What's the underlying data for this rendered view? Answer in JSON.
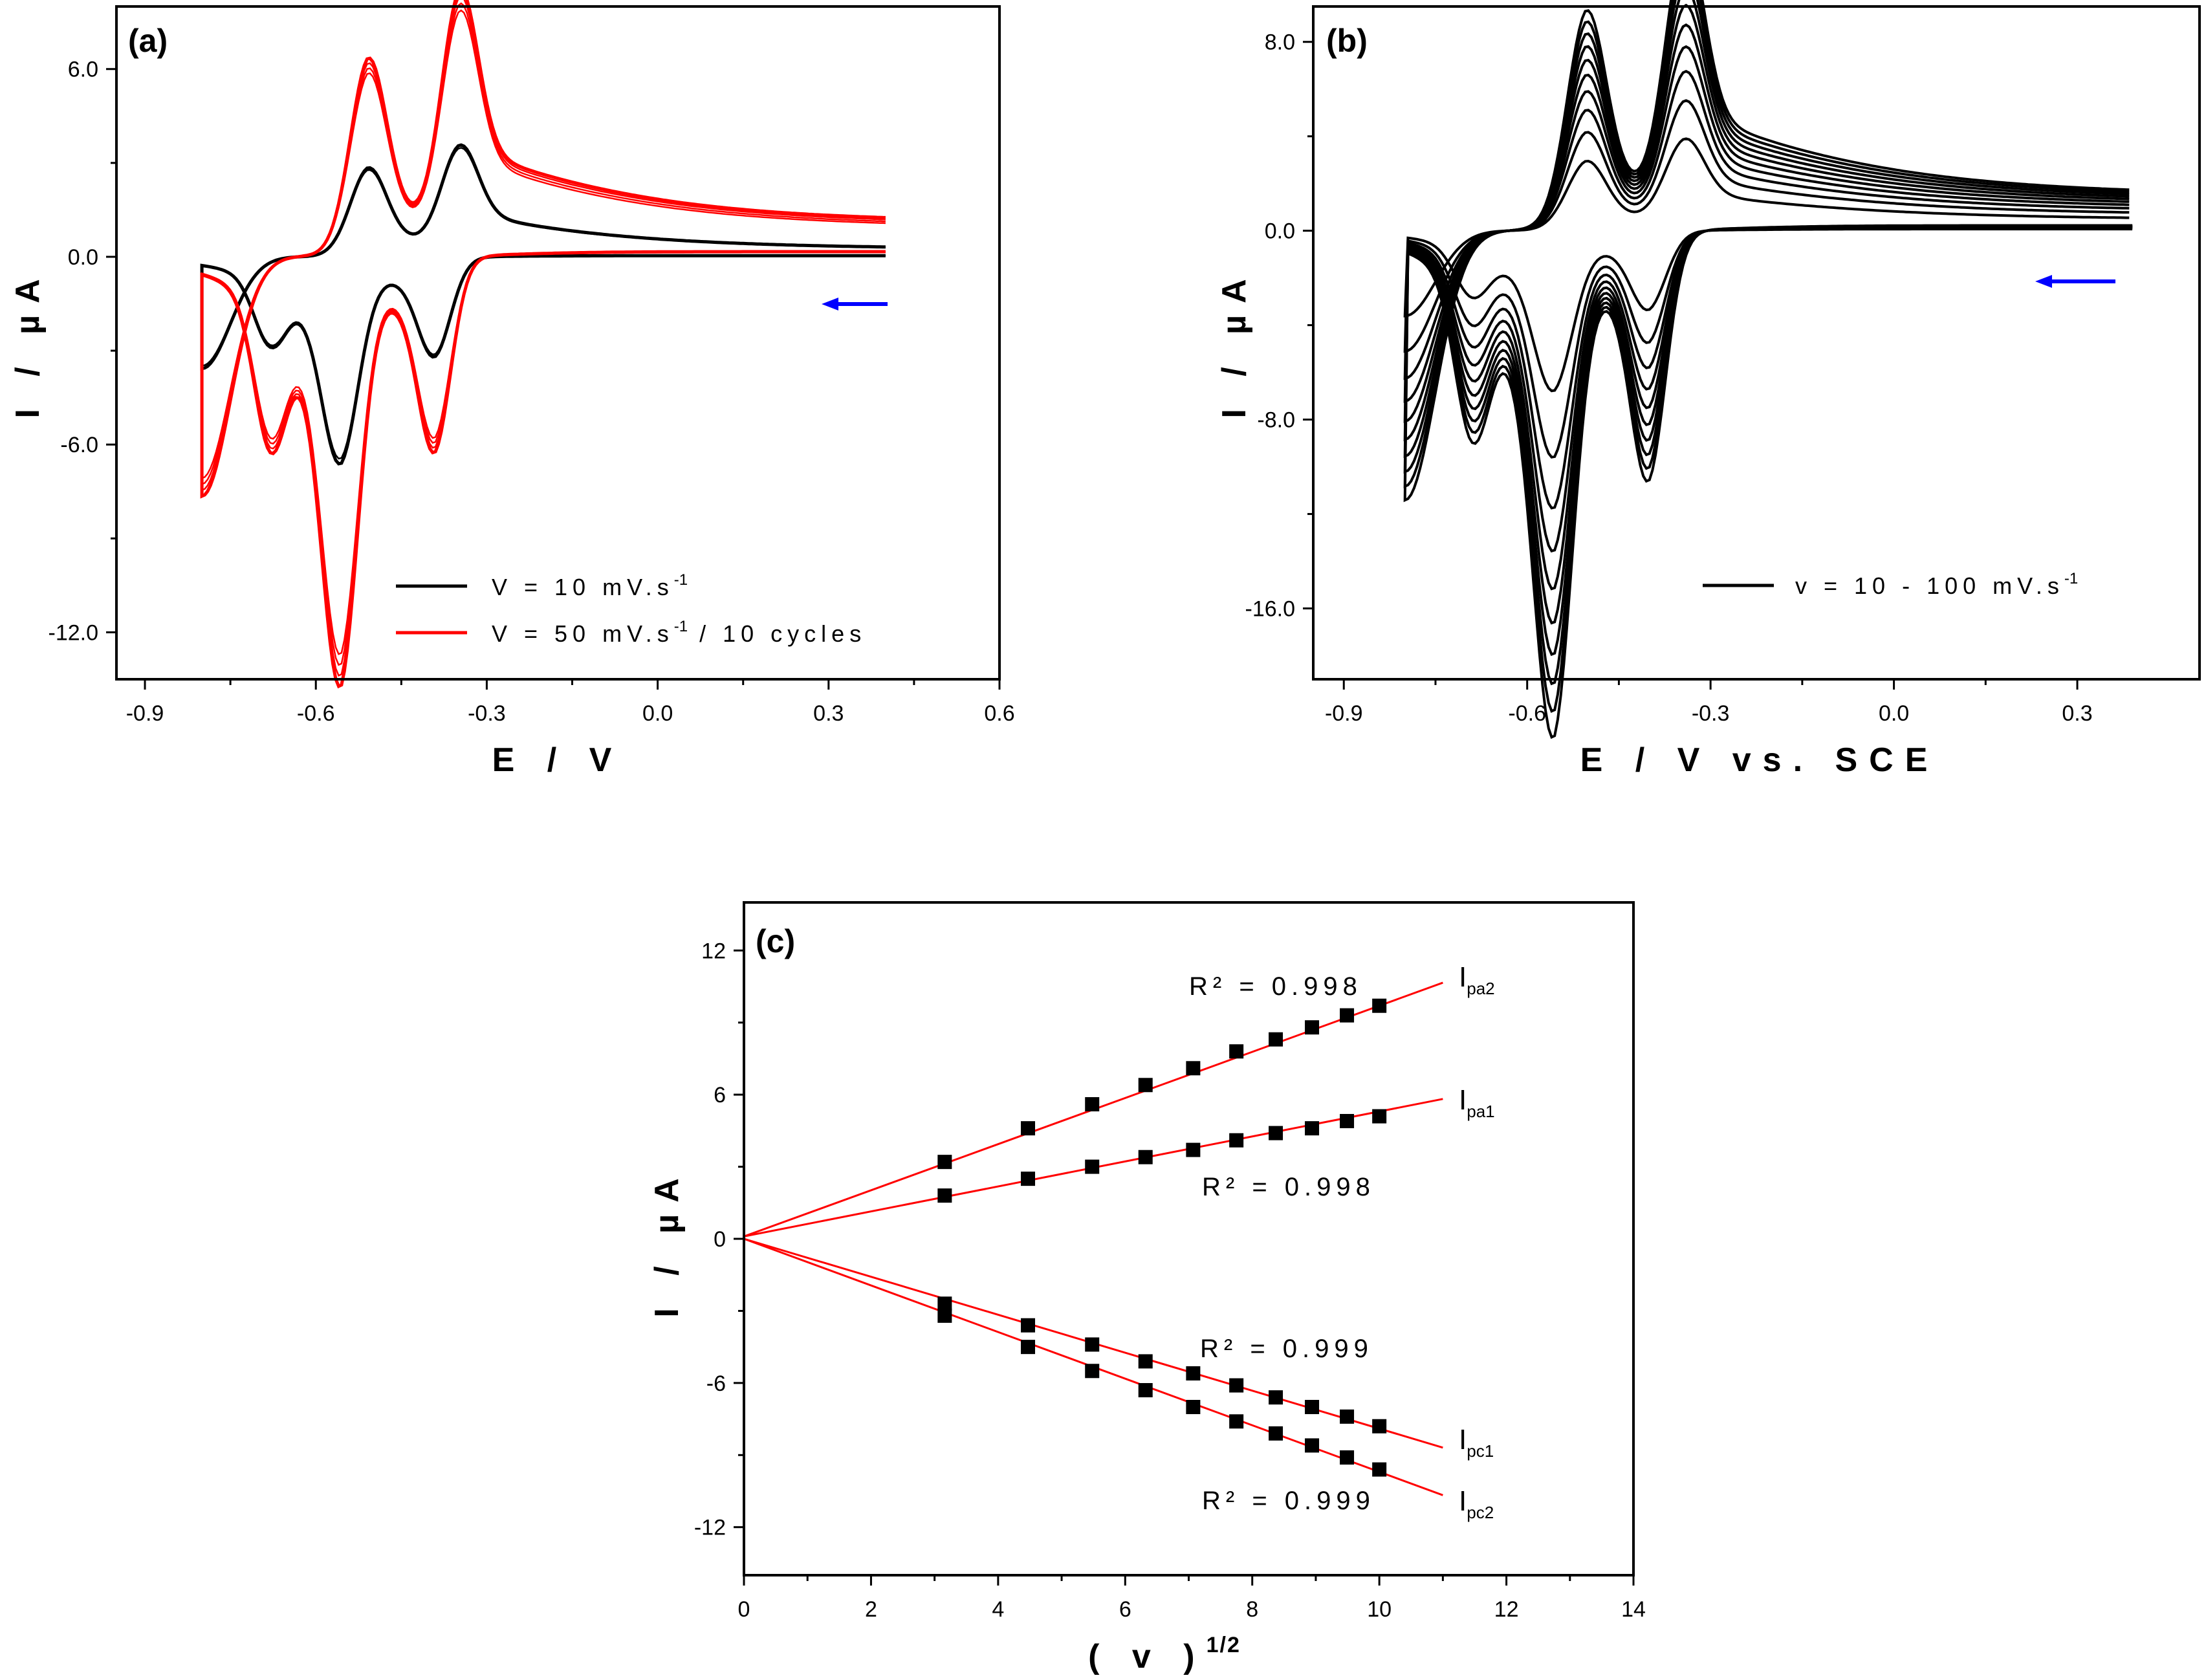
{
  "chart_data": [
    {
      "id": "a",
      "type": "line",
      "panel_label": "(a)",
      "xlabel": "E / V",
      "ylabel": "I / µA",
      "xlim": [
        -0.95,
        0.6
      ],
      "ylim": [
        -13.5,
        8.0
      ],
      "xticks": [
        -0.9,
        -0.6,
        -0.3,
        0.0,
        0.3,
        0.6
      ],
      "xtick_labels": [
        "-0.9",
        "-0.6",
        "-0.3",
        "0.0",
        "0.3",
        "0.6"
      ],
      "yticks": [
        -12.0,
        -6.0,
        0.0,
        6.0
      ],
      "ytick_labels": [
        "-12.0",
        "-6.0",
        "0.0",
        "6.0"
      ],
      "scan_direction": "negative",
      "e_range": [
        -0.8,
        0.4
      ],
      "series": [
        {
          "name": "V = 10 mV.s-1",
          "legend_main": "V = 10 mV.s",
          "legend_sup": "-1",
          "legend_tail": "",
          "color": "#000000",
          "cycles": 2,
          "scale": 1.0,
          "pa1": [
            -0.51,
            2.3
          ],
          "pa2": [
            -0.35,
            2.6
          ],
          "pc1": [
            -0.39,
            -2.5
          ],
          "pc2": [
            -0.555,
            -4.9
          ],
          "pc0": [
            -0.68,
            -4.2
          ],
          "baseline": 0.25
        },
        {
          "name": "V = 50 mV.s-1 / 10 cycles",
          "legend_main": "V = 50 mV.s",
          "legend_sup": "-1",
          "legend_tail": " / 10 cycles",
          "color": "#ff0000",
          "cycles": 10,
          "scale": 1.0,
          "pa1": [
            -0.51,
            5.1
          ],
          "pa2": [
            -0.35,
            6.1
          ],
          "pc1": [
            -0.39,
            -4.9
          ],
          "pc2": [
            -0.555,
            -10.2
          ],
          "pc0": [
            -0.68,
            -9.0
          ],
          "baseline": 1.1
        }
      ],
      "arrow_color": "#0000ff",
      "legend_position": "bottom-right"
    },
    {
      "id": "b",
      "type": "line",
      "panel_label": "(b)",
      "xlabel": "E / V vs. SCE",
      "ylabel": "I / µA",
      "xlim": [
        -0.95,
        0.5
      ],
      "ylim": [
        -19.0,
        9.5
      ],
      "xticks": [
        -0.9,
        -0.6,
        -0.3,
        0.0,
        0.3
      ],
      "xtick_labels": [
        "-0.9",
        "-0.6",
        "-0.3",
        "0.0",
        "0.3"
      ],
      "yticks": [
        -16.0,
        -8.0,
        0.0,
        8.0
      ],
      "ytick_labels": [
        "-16.0",
        "-8.0",
        "0.0",
        "8.0"
      ],
      "scan_rates_mV_s": [
        10,
        20,
        30,
        40,
        50,
        60,
        70,
        80,
        90,
        100
      ],
      "pa1_peak_max": 7.5,
      "pa2_peak_max": 8.8,
      "pc1_peak_max": -8.3,
      "pc2_peak_max": -15.8,
      "series": [
        {
          "name": "v = 10 - 100 mV.s-1",
          "legend_main": "v = 10 - 100 mV.s",
          "legend_sup": "-1",
          "color": "#000000"
        }
      ],
      "arrow_color": "#0000ff",
      "legend_position": "bottom-right"
    },
    {
      "id": "c",
      "type": "scatter",
      "panel_label": "(c)",
      "xlabel_main": "( v )",
      "xlabel_sup": "1/2",
      "ylabel": "I / µA",
      "xlim": [
        0,
        14
      ],
      "ylim": [
        -14,
        14
      ],
      "xticks": [
        0,
        2,
        4,
        6,
        8,
        10,
        12,
        14
      ],
      "xtick_labels": [
        "0",
        "2",
        "4",
        "6",
        "8",
        "10",
        "12",
        "14"
      ],
      "yticks": [
        -12,
        -6,
        0,
        6,
        12
      ],
      "ytick_labels": [
        "-12",
        "-6",
        "0",
        "6",
        "12"
      ],
      "x": [
        3.16,
        4.47,
        5.48,
        6.32,
        7.07,
        7.75,
        8.37,
        8.94,
        9.49,
        10.0
      ],
      "fit_x_range": [
        0,
        11
      ],
      "series": [
        {
          "name": "Ipa2",
          "label_main": "I",
          "label_sub": "pa2",
          "values": [
            3.2,
            4.6,
            5.6,
            6.4,
            7.1,
            7.8,
            8.3,
            8.8,
            9.3,
            9.7
          ],
          "fit": {
            "slope": 0.96,
            "intercept": 0.1
          },
          "r2": "R² = 0.998"
        },
        {
          "name": "Ipa1",
          "label_main": "I",
          "label_sub": "pa1",
          "values": [
            1.8,
            2.5,
            3.0,
            3.4,
            3.7,
            4.1,
            4.4,
            4.6,
            4.9,
            5.1
          ],
          "fit": {
            "slope": 0.52,
            "intercept": 0.1
          },
          "r2": "R² = 0.998"
        },
        {
          "name": "Ipc1",
          "label_main": "I",
          "label_sub": "pc1",
          "values": [
            -2.7,
            -3.6,
            -4.4,
            -5.1,
            -5.6,
            -6.1,
            -6.6,
            -7.0,
            -7.4,
            -7.8
          ],
          "fit": {
            "slope": -0.79,
            "intercept": 0.0
          },
          "r2": "R² = 0.999"
        },
        {
          "name": "Ipc2",
          "label_main": "I",
          "label_sub": "pc2",
          "values": [
            -3.2,
            -4.5,
            -5.5,
            -6.3,
            -7.0,
            -7.6,
            -8.1,
            -8.6,
            -9.1,
            -9.6
          ],
          "fit": {
            "slope": -0.97,
            "intercept": 0.0
          },
          "r2": "R² = 0.999"
        }
      ],
      "marker_color": "#000000",
      "fit_color": "#ff0000"
    }
  ]
}
